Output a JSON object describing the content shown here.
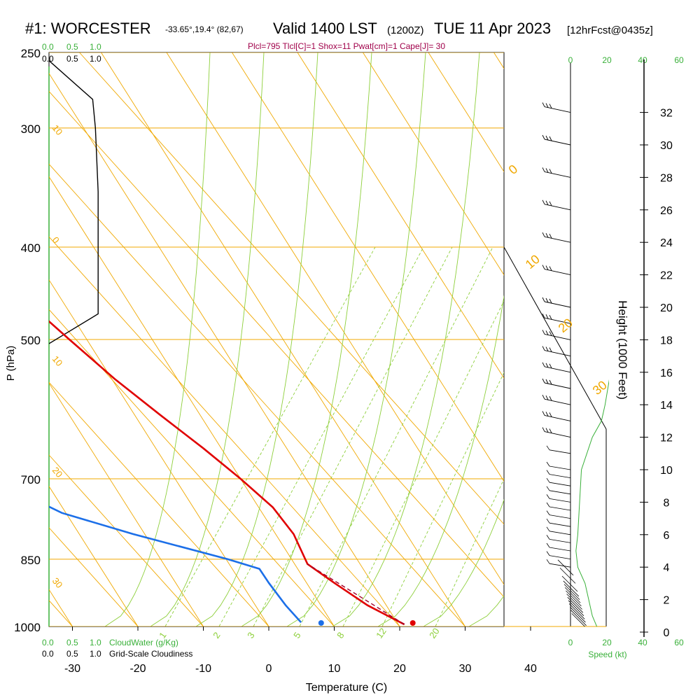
{
  "header": {
    "station": "#1: WORCESTER",
    "coords": "-33.65°,19.4° (82,67)",
    "valid": "Valid 1400 LST",
    "zulu": "(1200Z)",
    "date": "TUE 11 Apr 2023",
    "fcst": "[12hrFcst@0435z]",
    "params": "Plcl=795 Tlcl[C]=1 Shox=11 Pwat[cm]=1 Cape[J]= 30"
  },
  "colors": {
    "temperature": "#e00000",
    "dewpoint": "#1c6fe8",
    "isobar": "#f0a800",
    "mixing": "#8dcf3a",
    "cloud": "#39b039",
    "black": "#000000",
    "params": "#a0004a"
  },
  "chart_data": {
    "type": "line",
    "title": "#1: WORCESTER -33.65°,19.4° (82,67) Valid 1400 LST (1200Z) TUE 11 Apr 2023 [12hrFcst@0435z]",
    "xlabel": "Temperature (C)",
    "ylabel": "P (hPa)",
    "y2label": "Height (1000 Feet)",
    "x_ticks": [
      "-30",
      "-20",
      "-10",
      "0",
      "10",
      "20",
      "30",
      "40"
    ],
    "p_ticks": [
      "250",
      "300",
      "400",
      "500",
      "700",
      "850",
      "1000"
    ],
    "height_ticks": [
      "0",
      "2",
      "4",
      "6",
      "8",
      "10",
      "12",
      "14",
      "16",
      "18",
      "20",
      "22",
      "24",
      "26",
      "28",
      "30",
      "32"
    ],
    "cloudwater_scale": [
      "0.0",
      "0.5",
      "1.0"
    ],
    "cloudiness_scale": [
      "0.0",
      "0.5",
      "1.0"
    ],
    "cloudwater_label": "CloudWater (g/Kg)",
    "cloudiness_label": "Grid-Scale Cloudiness",
    "speed_ticks": [
      "0",
      "20",
      "40",
      "60"
    ],
    "speed_label": "Speed (kt)",
    "isotherm_labels": [
      "0",
      "10",
      "20",
      "30"
    ],
    "left_labels": [
      "10",
      "0",
      "10",
      "20",
      "30"
    ],
    "mixing_ratio_labels": [
      "1",
      "2",
      "3",
      "5",
      "8",
      "12",
      "20"
    ],
    "series": [
      {
        "name": "Temperature",
        "points": [
          [
            260,
            -3
          ],
          [
            300,
            -0.5
          ],
          [
            350,
            3
          ],
          [
            400,
            5.5
          ],
          [
            450,
            7.5
          ],
          [
            500,
            9
          ],
          [
            550,
            10.5
          ],
          [
            600,
            12.5
          ],
          [
            650,
            14.5
          ],
          [
            700,
            16
          ],
          [
            750,
            17
          ],
          [
            800,
            16.5
          ],
          [
            860,
            14.5
          ],
          [
            900,
            16
          ],
          [
            950,
            18
          ],
          [
            980,
            20
          ],
          [
            995,
            21
          ]
        ]
      },
      {
        "name": "Dewpoint",
        "points": [
          [
            260,
            -8
          ],
          [
            300,
            -6
          ],
          [
            350,
            -3.5
          ],
          [
            400,
            -1.5
          ],
          [
            450,
            0.5
          ],
          [
            480,
            1
          ],
          [
            500,
            1
          ],
          [
            550,
            -1
          ],
          [
            600,
            -6
          ],
          [
            650,
            -19
          ],
          [
            680,
            -20
          ],
          [
            720,
            -20
          ],
          [
            760,
            -16
          ],
          [
            800,
            -8
          ],
          [
            850,
            3
          ],
          [
            870,
            6.5
          ],
          [
            900,
            6
          ],
          [
            950,
            5.5
          ],
          [
            990,
            5.5
          ]
        ]
      },
      {
        "name": "Parcel",
        "points": [
          [
            995,
            21
          ],
          [
            950,
            19
          ],
          [
            860,
            14.5
          ]
        ]
      }
    ],
    "surface_points": {
      "temperature": 22,
      "dewpoint": 8
    },
    "cloudiness_profile": [
      [
        255,
        0
      ],
      [
        280,
        0.8
      ],
      [
        300,
        0.85
      ],
      [
        350,
        0.9
      ],
      [
        470,
        0.9
      ],
      [
        505,
        0
      ]
    ],
    "wind_profile_heights_kft": [
      0.2,
      0.4,
      0.6,
      0.8,
      1,
      1.2,
      1.4,
      1.6,
      1.8,
      2,
      2.2,
      2.5,
      3,
      3.5,
      4,
      4.5,
      5,
      5.5,
      6,
      6.5,
      7,
      7.5,
      8,
      8.5,
      9,
      9.5,
      10,
      11,
      12,
      13,
      14,
      15,
      16,
      17,
      18,
      19,
      20,
      22,
      24,
      26,
      28,
      30,
      32
    ]
  }
}
